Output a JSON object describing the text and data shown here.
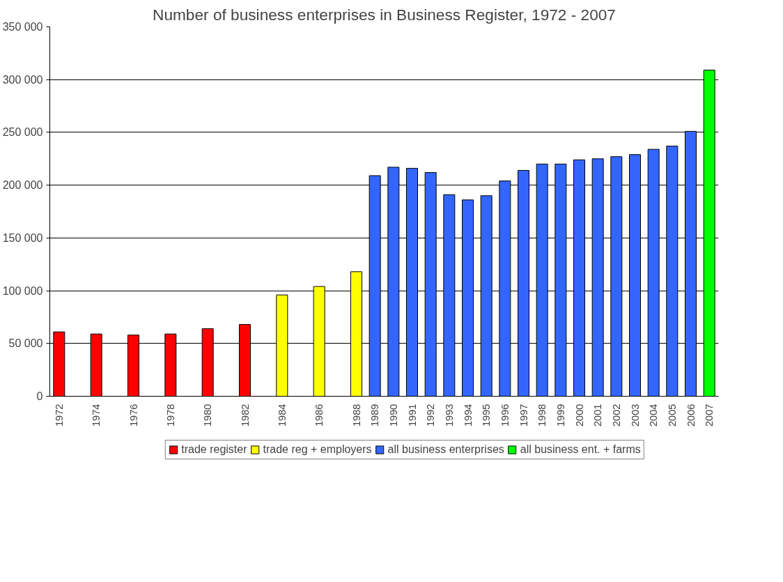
{
  "chart_data": {
    "type": "bar",
    "title": "Number of business enterprises in Business Register, 1972 - 2007",
    "categories": [
      "1972",
      null,
      "1974",
      null,
      "1976",
      null,
      "1978",
      null,
      "1980",
      null,
      "1982",
      null,
      "1984",
      null,
      "1986",
      null,
      "1988",
      "1989",
      "1990",
      "1991",
      "1992",
      "1993",
      "1994",
      "1995",
      "1996",
      "1997",
      "1998",
      "1999",
      "2000",
      "2001",
      "2002",
      "2003",
      "2004",
      "2005",
      "2006",
      "2007"
    ],
    "series": [
      {
        "name": "trade register",
        "color": "#ff0000",
        "values": [
          61000,
          null,
          59000,
          null,
          58000,
          null,
          59000,
          null,
          64000,
          null,
          68000,
          null,
          null,
          null,
          null,
          null,
          null,
          null,
          null,
          null,
          null,
          null,
          null,
          null,
          null,
          null,
          null,
          null,
          null,
          null,
          null,
          null,
          null,
          null,
          null,
          null
        ]
      },
      {
        "name": "trade reg + employers",
        "color": "#ffff00",
        "values": [
          null,
          null,
          null,
          null,
          null,
          null,
          null,
          null,
          null,
          null,
          null,
          null,
          96000,
          null,
          104000,
          null,
          118000,
          null,
          null,
          null,
          null,
          null,
          null,
          null,
          null,
          null,
          null,
          null,
          null,
          null,
          null,
          null,
          null,
          null,
          null,
          null
        ]
      },
      {
        "name": "all business enterprises",
        "color": "#3366ff",
        "values": [
          null,
          null,
          null,
          null,
          null,
          null,
          null,
          null,
          null,
          null,
          null,
          null,
          null,
          null,
          null,
          null,
          null,
          209000,
          217000,
          216000,
          212000,
          191000,
          186000,
          190000,
          204000,
          214000,
          220000,
          220000,
          224000,
          225000,
          227000,
          229000,
          234000,
          237000,
          251000,
          null
        ]
      },
      {
        "name": "all business ent. + farms",
        "color": "#00ff00",
        "values": [
          null,
          null,
          null,
          null,
          null,
          null,
          null,
          null,
          null,
          null,
          null,
          null,
          null,
          null,
          null,
          null,
          null,
          null,
          null,
          null,
          null,
          null,
          null,
          null,
          null,
          null,
          null,
          null,
          null,
          null,
          null,
          null,
          null,
          null,
          null,
          309000
        ]
      }
    ],
    "ylim": [
      0,
      350000
    ],
    "yticks": [
      {
        "value": 0,
        "label": "0"
      },
      {
        "value": 50000,
        "label": "50 000"
      },
      {
        "value": 100000,
        "label": "100 000"
      },
      {
        "value": 150000,
        "label": "150 000"
      },
      {
        "value": 200000,
        "label": "200 000"
      },
      {
        "value": 250000,
        "label": "250 000"
      },
      {
        "value": 300000,
        "label": "300 000"
      },
      {
        "value": 350000,
        "label": "350 000"
      }
    ],
    "grid": "y",
    "legend": "bottom"
  }
}
